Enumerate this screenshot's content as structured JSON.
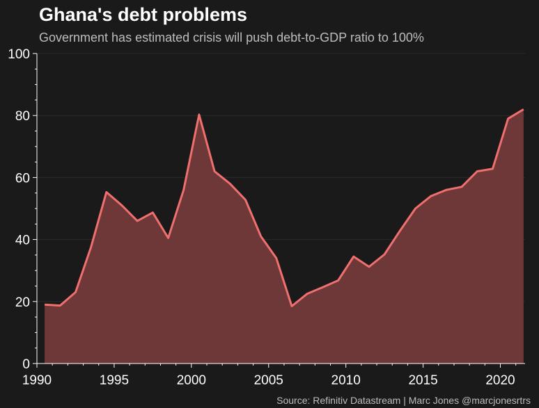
{
  "chart_data": {
    "type": "area",
    "title": "Ghana's debt problems",
    "subtitle": "Government has estimated crisis will push debt-to-GDP ratio to 100%",
    "source": "Source: Refinitiv Datastream | Marc Jones @marcjonesrtrs",
    "xlabel": "",
    "ylabel": "",
    "xlim": [
      1990,
      2021.6
    ],
    "ylim": [
      0,
      100
    ],
    "x_ticks": [
      1990,
      1995,
      2000,
      2005,
      2010,
      2015,
      2020
    ],
    "y_ticks": [
      0,
      20,
      40,
      60,
      80,
      100
    ],
    "grid": "horizontal",
    "legend": "none",
    "x": [
      1990.5,
      1991.5,
      1992.5,
      1993.5,
      1994.5,
      1995.5,
      1996.5,
      1997.5,
      1998.5,
      1999.5,
      2000.5,
      2001.5,
      2002.5,
      2003.5,
      2004.5,
      2005.5,
      2006.5,
      2007.5,
      2008.5,
      2009.5,
      2010.5,
      2011.5,
      2012.5,
      2013.5,
      2014.5,
      2015.5,
      2016.5,
      2017.5,
      2018.5,
      2019.5,
      2020.5,
      2021.5
    ],
    "series": [
      {
        "values": [
          19,
          18.7,
          23,
          37.5,
          55.3,
          51,
          46,
          48.7,
          40.5,
          56,
          80.3,
          62,
          58,
          52.8,
          41,
          34,
          18.5,
          22.5,
          24.6,
          26.8,
          34.5,
          31.2,
          35.2,
          42.8,
          50,
          54,
          56,
          57,
          62,
          62.8,
          79,
          82
        ],
        "color": "#f07070",
        "fill": "#6e3838"
      }
    ]
  }
}
